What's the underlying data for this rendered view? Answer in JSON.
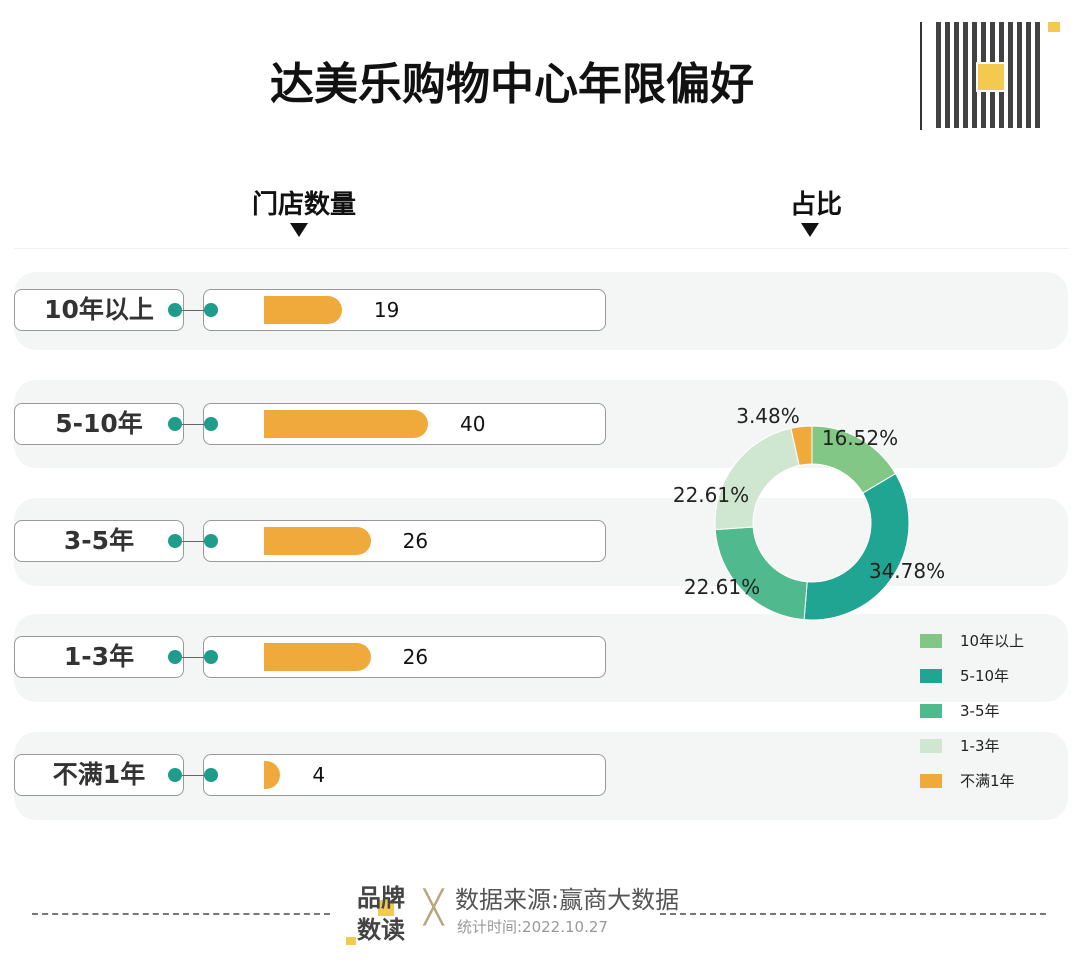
{
  "title": "达美乐购物中心年限偏好",
  "headers": {
    "count": "门店数量",
    "share": "占比"
  },
  "chart_data": [
    {
      "type": "bar",
      "orientation": "horizontal",
      "title": "门店数量",
      "categories": [
        "10年以上",
        "5-10年",
        "3-5年",
        "1-3年",
        "不满1年"
      ],
      "values": [
        19,
        40,
        26,
        26,
        4
      ],
      "color": "#f0aa3b"
    },
    {
      "type": "pie",
      "donut": true,
      "title": "占比",
      "categories": [
        "10年以上",
        "5-10年",
        "3-5年",
        "1-3年",
        "不满1年"
      ],
      "values": [
        16.52,
        34.78,
        22.61,
        22.61,
        3.48
      ],
      "labels": [
        "16.52%",
        "34.78%",
        "22.61%",
        "22.61%",
        "3.48%"
      ],
      "colors": [
        "#82c786",
        "#1fa592",
        "#50ba8e",
        "#cfe7d0",
        "#f0aa3b"
      ],
      "legend": "bottom-right"
    }
  ],
  "footer": {
    "brand_line1": "品牌",
    "brand_line2": "数读",
    "source": "数据来源:赢商大数据",
    "date": "统计时间:2022.10.27"
  }
}
